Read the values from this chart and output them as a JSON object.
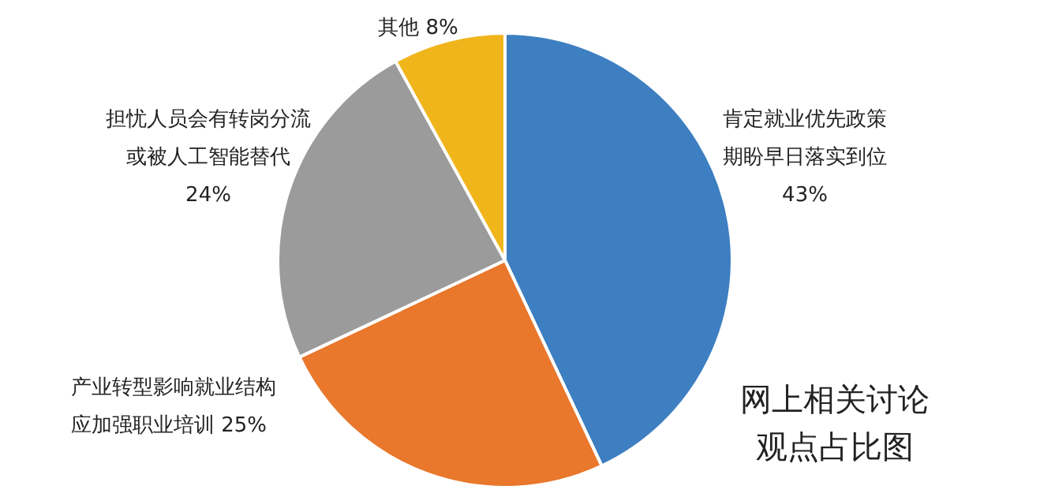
{
  "chart_data": {
    "type": "pie",
    "title": "网上相关讨论观点占比图",
    "categories": [
      "肯定就业优先政策期盼早日落实到位",
      "产业转型影响就业结构应加强职业培训",
      "担忧人员会有转岗分流或被人工智能替代",
      "其他"
    ],
    "values": [
      43,
      25,
      24,
      8
    ],
    "colors": [
      "#3d7fc1",
      "#e9772c",
      "#9b9b9b",
      "#f1b51c"
    ],
    "value_labels": [
      "43%",
      "25%",
      "24%",
      "8%"
    ],
    "legend": false
  }
}
